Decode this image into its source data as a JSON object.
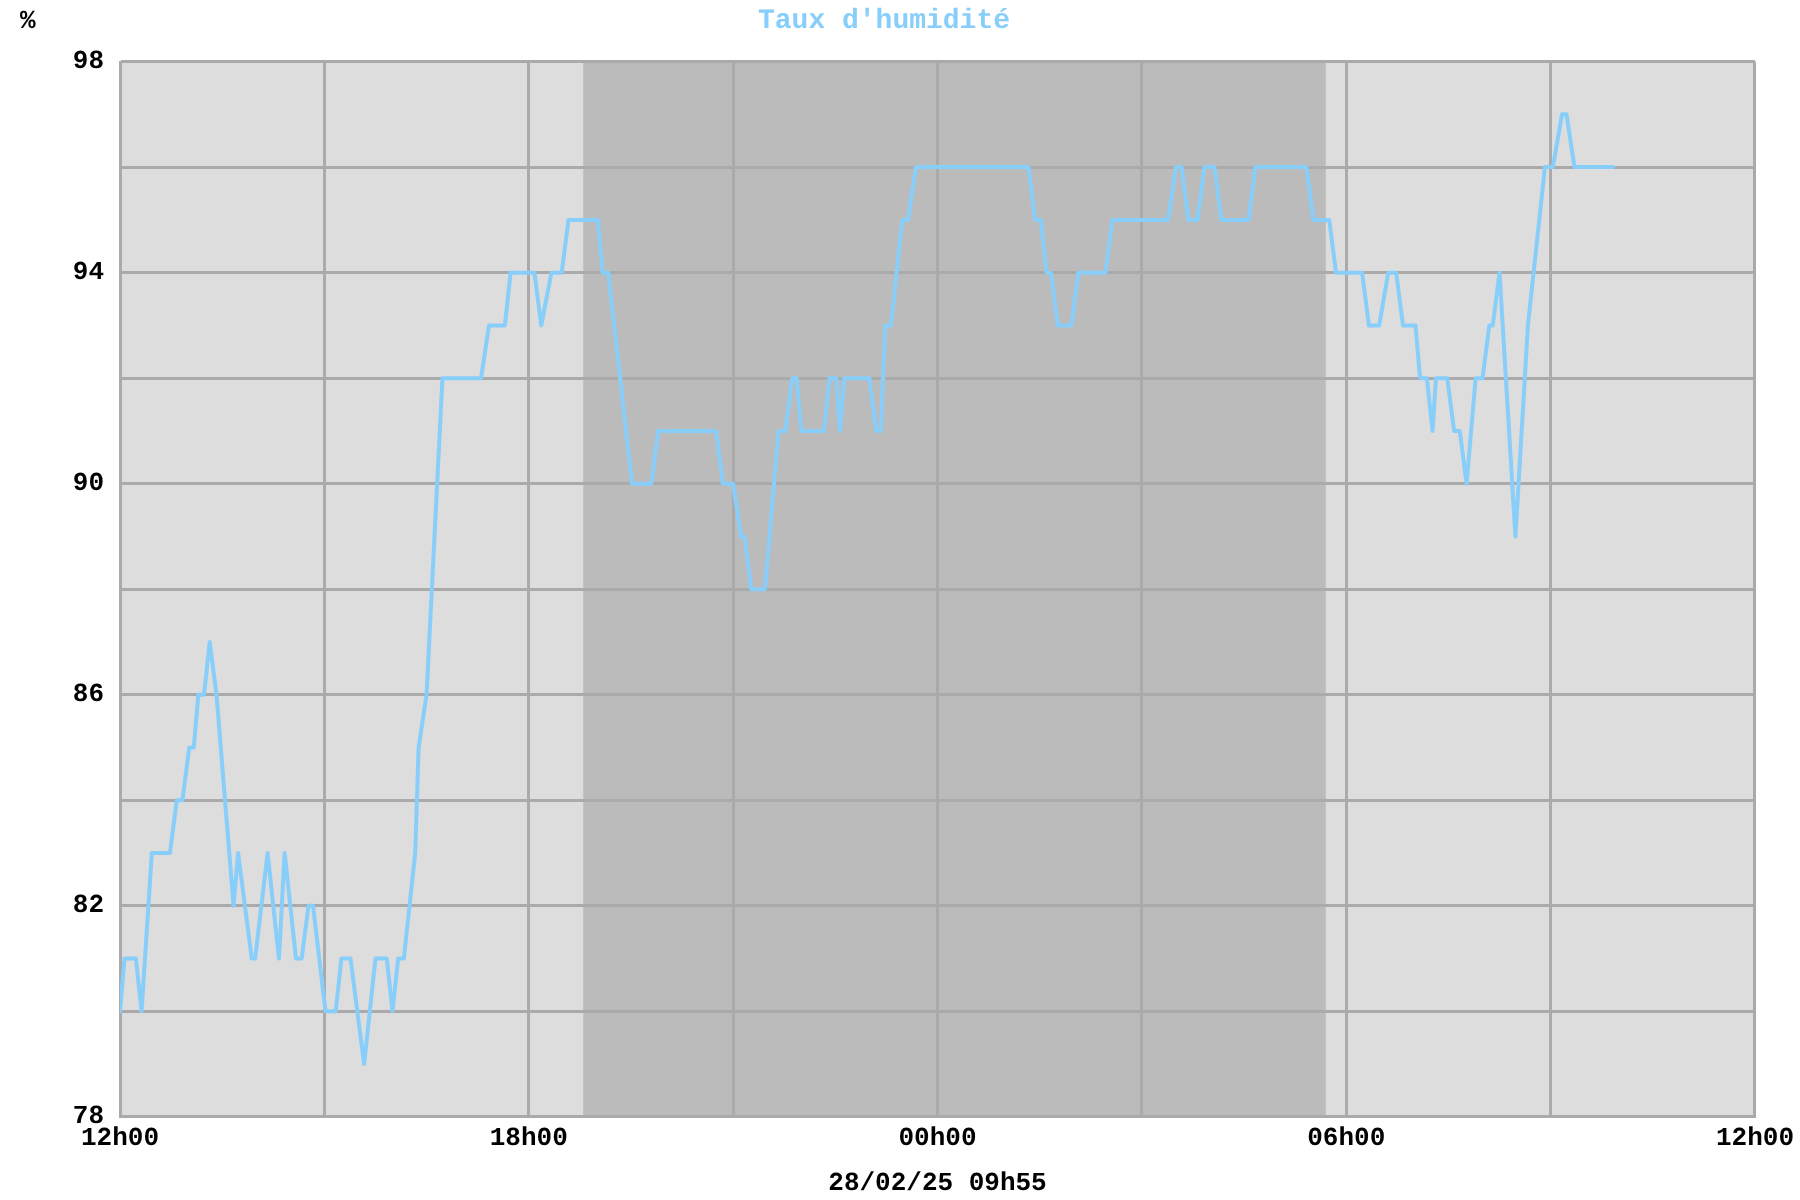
{
  "chart_data": {
    "type": "line",
    "title": "Taux d'humidité",
    "ylabel": "%",
    "annotations": [
      "28/02/25 09h55"
    ],
    "x": [
      "--02-27T12:00",
      "--02-27T12:04",
      "--02-27T12:14",
      "--02-27T12:19",
      "--02-27T12:28",
      "--02-27T12:44",
      "--02-27T12:50",
      "--02-27T12:55",
      "--02-27T13:01",
      "--02-27T13:05",
      "--02-27T13:09",
      "--02-27T13:14",
      "--02-27T13:19",
      "--02-27T13:25",
      "--02-27T13:40",
      "--02-27T13:44",
      "--02-27T13:56",
      "--02-27T13:59",
      "--02-27T14:10",
      "--02-27T14:20",
      "--02-27T14:25",
      "--02-27T14:35",
      "--02-27T14:40",
      "--02-27T14:46",
      "--02-27T14:50",
      "--02-27T15:01",
      "--02-27T15:10",
      "--02-27T15:15",
      "--02-27T15:23",
      "--02-27T15:35",
      "--02-27T15:45",
      "--02-27T15:55",
      "--02-27T16:00",
      "--02-27T16:05",
      "--02-27T16:10",
      "--02-27T16:20",
      "--02-27T16:23",
      "--02-27T16:30",
      "--02-27T16:44",
      "--02-27T17:18",
      "--02-27T17:25",
      "--02-27T17:39",
      "--02-27T17:44",
      "--02-27T18:05",
      "--02-27T18:11",
      "--02-27T18:20",
      "--02-27T18:29",
      "--02-27T18:35",
      "--02-27T19:01",
      "--02-27T19:05",
      "--02-27T19:10",
      "--02-27T19:31",
      "--02-27T19:48",
      "--02-27T19:54",
      "--02-27T20:45",
      "--02-27T20:51",
      "--02-27T21:00",
      "--02-27T21:07",
      "--02-27T21:10",
      "--02-27T21:16",
      "--02-27T21:28",
      "--02-27T21:40",
      "--02-27T21:46",
      "--02-27T21:52",
      "--02-27T21:56",
      "--02-27T22:00",
      "--02-27T22:20",
      "--02-27T22:25",
      "--02-27T22:31",
      "--02-27T22:34",
      "--02-27T22:38",
      "--02-27T23:00",
      "--02-27T23:06",
      "--02-27T23:10",
      "--02-27T23:14",
      "--02-27T23:19",
      "--02-27T23:29",
      "--02-27T23:34",
      "--02-27T23:41",
      "--02-28T01:20",
      "--02-28T01:26",
      "--02-28T01:31",
      "--02-28T01:36",
      "--02-28T01:40",
      "--02-28T01:46",
      "--02-28T01:58",
      "--02-28T02:04",
      "--02-28T02:28",
      "--02-28T02:34",
      "--02-28T03:23",
      "--02-28T03:30",
      "--02-28T03:35",
      "--02-28T03:41",
      "--02-28T03:49",
      "--02-28T03:55",
      "--02-28T04:04",
      "--02-28T04:10",
      "--02-28T04:34",
      "--02-28T04:40",
      "--02-28T05:25",
      "--02-28T05:31",
      "--02-28T05:45",
      "--02-28T05:51",
      "--02-28T06:14",
      "--02-28T06:20",
      "--02-28T06:29",
      "--02-28T06:37",
      "--02-28T06:44",
      "--02-28T06:50",
      "--02-28T07:01",
      "--02-28T07:05",
      "--02-28T07:11",
      "--02-28T07:16",
      "--02-28T07:19",
      "--02-28T07:29",
      "--02-28T07:35",
      "--02-28T07:40",
      "--02-28T07:46",
      "--02-28T07:54",
      "--02-28T08:00",
      "--02-28T08:06",
      "--02-28T08:09",
      "--02-28T08:15",
      "--02-28T08:29",
      "--02-28T08:40",
      "--02-28T08:55",
      "--02-28T09:02",
      "--02-28T09:10",
      "--02-28T09:14",
      "--02-28T09:21",
      "--02-28T09:55"
    ],
    "series": [
      {
        "color": "#87cefa",
        "values": [
          80,
          81,
          81,
          80,
          83,
          83,
          84,
          84,
          85,
          85,
          86,
          86,
          87,
          86,
          82,
          83,
          81,
          81,
          83,
          81,
          83,
          81,
          81,
          82,
          82,
          80,
          80,
          81,
          81,
          79,
          81,
          81,
          80,
          81,
          81,
          83,
          85,
          86,
          92,
          92,
          93,
          93,
          94,
          94,
          93,
          94,
          94,
          95,
          95,
          94,
          94,
          90,
          90,
          91,
          91,
          90,
          90,
          89,
          89,
          88,
          88,
          91,
          91,
          92,
          92,
          91,
          91,
          92,
          92,
          91,
          92,
          92,
          91,
          91,
          93,
          93,
          95,
          95,
          96,
          96,
          95,
          95,
          94,
          94,
          93,
          93,
          94,
          94,
          95,
          95,
          96,
          96,
          95,
          95,
          96,
          96,
          95,
          95,
          96,
          96,
          95,
          95,
          94,
          94,
          93,
          93,
          94,
          94,
          93,
          93,
          92,
          92,
          91,
          92,
          92,
          91,
          91,
          90,
          92,
          92,
          93,
          93,
          94,
          89,
          93,
          96,
          96,
          97,
          97,
          96,
          96
        ]
      }
    ],
    "xlim": [
      "--02-27T12:00",
      "--02-28T12:00"
    ],
    "xticks": [
      {
        "value": "--02-27T12:00",
        "label": "12h00"
      },
      {
        "value": "--02-27T15:00",
        "label": null
      },
      {
        "value": "--02-27T18:00",
        "label": "18h00"
      },
      {
        "value": "--02-27T21:00",
        "label": null
      },
      {
        "value": "--02-28T00:00",
        "label": "00h00"
      },
      {
        "value": "--02-28T03:00",
        "label": null
      },
      {
        "value": "--02-28T06:00",
        "label": "06h00"
      },
      {
        "value": "--02-28T09:00",
        "label": null
      },
      {
        "value": "--02-28T12:00",
        "label": "12h00"
      }
    ],
    "ylim": [
      78,
      98
    ],
    "yticks": [
      78,
      {
        "value": 80,
        "label": null
      },
      82,
      {
        "value": 84,
        "label": null
      },
      86,
      {
        "value": 88,
        "label": null
      },
      90,
      {
        "value": 92,
        "label": null
      },
      94,
      {
        "value": 96,
        "label": null
      },
      98
    ],
    "bands": [
      {
        "axis": "x",
        "from": "--02-27T18:48",
        "to": "--02-28T05:42",
        "color": "#bbbbbb"
      }
    ],
    "grid": true,
    "legend": false,
    "marker": "none",
    "line_style": "solid"
  }
}
